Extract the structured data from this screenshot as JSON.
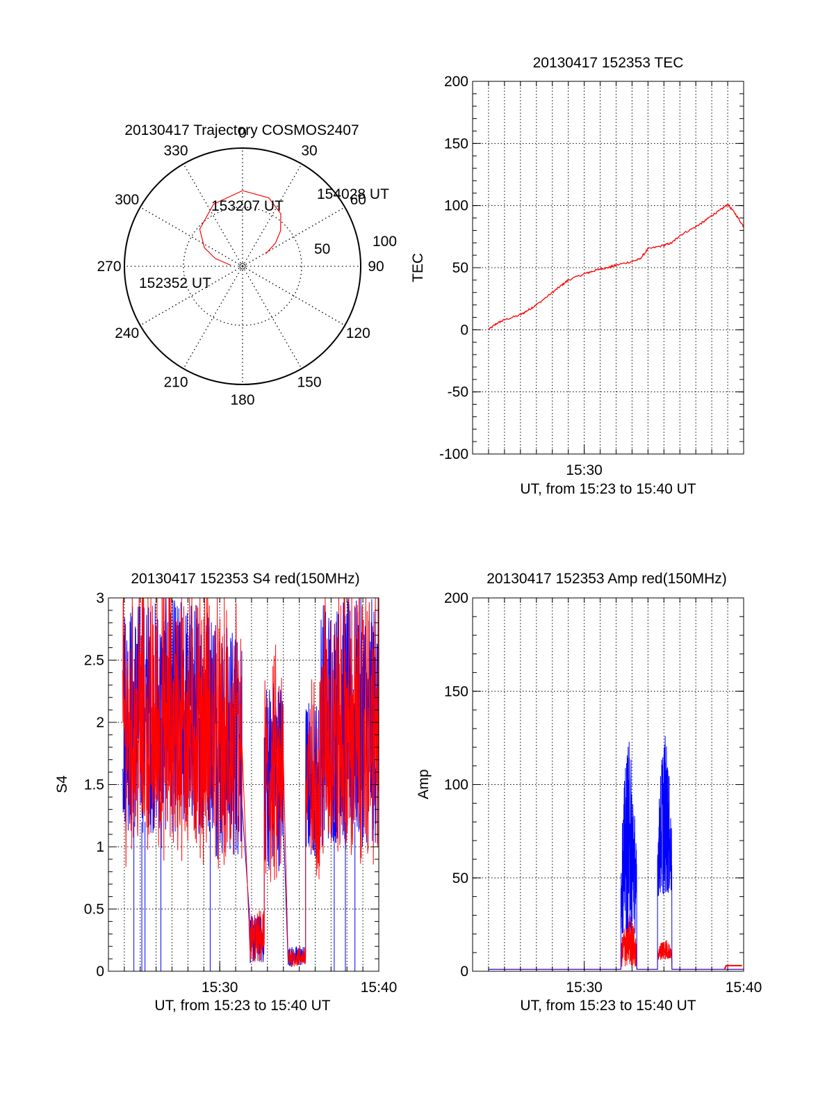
{
  "colors": {
    "red": "#ff0000",
    "blue": "#0000ff",
    "axis": "#000000",
    "grid": "#000000"
  },
  "chart_data": [
    {
      "id": "trajectory",
      "type": "polar",
      "title": "20130417 Trajectory COSMOS2407",
      "azimuth_labels": [
        "0",
        "30",
        "60",
        "90",
        "120",
        "150",
        "180",
        "210",
        "240",
        "270",
        "300",
        "330"
      ],
      "elevation_labels": [
        "50",
        "100"
      ],
      "trajectory": {
        "points": [
          [
            275,
            10
          ],
          [
            286,
            24
          ],
          [
            296,
            36
          ],
          [
            311,
            48
          ],
          [
            335,
            58
          ],
          [
            360,
            64
          ],
          [
            21,
            62
          ],
          [
            36,
            55
          ],
          [
            47,
            44
          ],
          [
            55,
            34
          ],
          [
            62,
            22
          ]
        ],
        "labels": [
          "152352 UT",
          "153207 UT",
          "154028 UT"
        ]
      }
    },
    {
      "id": "tec",
      "type": "line",
      "title": "20130417 152353 TEC",
      "ylabel": "TEC",
      "xlabel": "UT, from 15:23 to 15:40 UT",
      "xlim": [
        0,
        17
      ],
      "ylim": [
        -100,
        200
      ],
      "yticks": [
        "-100",
        "-50",
        "0",
        "50",
        "100",
        "150",
        "200"
      ],
      "xtick_labels": [
        {
          "x": 7,
          "label": "15:30"
        }
      ],
      "series": [
        {
          "color": "red",
          "points": [
            [
              1,
              0
            ],
            [
              1.5,
              5
            ],
            [
              2,
              8
            ],
            [
              3,
              12
            ],
            [
              3.5,
              16
            ],
            [
              4,
              20
            ],
            [
              5,
              30
            ],
            [
              5.5,
              35
            ],
            [
              6,
              40
            ],
            [
              7,
              45
            ],
            [
              7.5,
              47
            ],
            [
              8,
              49
            ],
            [
              8.5,
              50
            ],
            [
              9,
              52
            ],
            [
              10,
              55
            ],
            [
              10.5,
              57
            ],
            [
              11,
              65
            ],
            [
              12,
              68
            ],
            [
              12.5,
              70
            ],
            [
              13,
              76
            ],
            [
              14,
              83
            ],
            [
              14.5,
              87
            ],
            [
              15,
              92
            ],
            [
              15.5,
              96
            ],
            [
              16,
              101
            ],
            [
              16.5,
              93
            ],
            [
              17,
              83
            ]
          ]
        }
      ]
    },
    {
      "id": "s4",
      "type": "line",
      "title": "20130417 152353 S4 red(150MHz)",
      "ylabel": "S4",
      "xlabel": "UT, from 15:23 to 15:40 UT",
      "xlim": [
        0,
        17
      ],
      "ylim": [
        0,
        3
      ],
      "yticks": [
        "0",
        "0.5",
        "1",
        "1.5",
        "2",
        "2.5",
        "3"
      ],
      "xtick_labels": [
        {
          "x": 7,
          "label": "15:30"
        },
        {
          "x": 17,
          "label": "15:40"
        }
      ],
      "segments": [
        {
          "x0": 0.9,
          "x1": 6.8,
          "lo": 1.1,
          "hi": 3.0,
          "spikes": [
            1.6,
            2.1,
            2.3,
            3.3,
            6.4
          ]
        },
        {
          "x0": 6.8,
          "x1": 8.4,
          "lo": 0.9,
          "hi": 2.8,
          "spikes": []
        },
        {
          "x0": 8.9,
          "x1": 9.8,
          "lo": 0.06,
          "hi": 0.45,
          "spikes": []
        },
        {
          "x0": 9.8,
          "x1": 11.0,
          "lo": 0.8,
          "hi": 2.4,
          "spikes": []
        },
        {
          "x0": 11.3,
          "x1": 12.4,
          "lo": 0.04,
          "hi": 0.2,
          "spikes": []
        },
        {
          "x0": 12.4,
          "x1": 13.3,
          "lo": 0.9,
          "hi": 2.2,
          "spikes": []
        },
        {
          "x0": 13.3,
          "x1": 17.0,
          "lo": 1.0,
          "hi": 3.0,
          "spikes": [
            14.2,
            14.9,
            15.5
          ]
        }
      ]
    },
    {
      "id": "amp",
      "type": "line",
      "title": "20130417 152353 Amp red(150MHz)",
      "ylabel": "Amp",
      "xlabel": "UT, from 15:23 to 15:40 UT",
      "xlim": [
        0,
        17
      ],
      "ylim": [
        0,
        200
      ],
      "yticks": [
        "0",
        "50",
        "100",
        "150",
        "200"
      ],
      "xtick_labels": [
        {
          "x": 7,
          "label": "15:30"
        },
        {
          "x": 17,
          "label": "15:40"
        }
      ],
      "bursts": [
        {
          "x0": 9.3,
          "x1": 10.3,
          "blue_hi": 124,
          "blue_lo": 20,
          "red_hi": 32,
          "red_lo": 2
        },
        {
          "x0": 11.6,
          "x1": 12.5,
          "blue_hi": 127,
          "blue_lo": 40,
          "red_hi": 18,
          "red_lo": 6
        }
      ],
      "baseline": 1
    }
  ]
}
